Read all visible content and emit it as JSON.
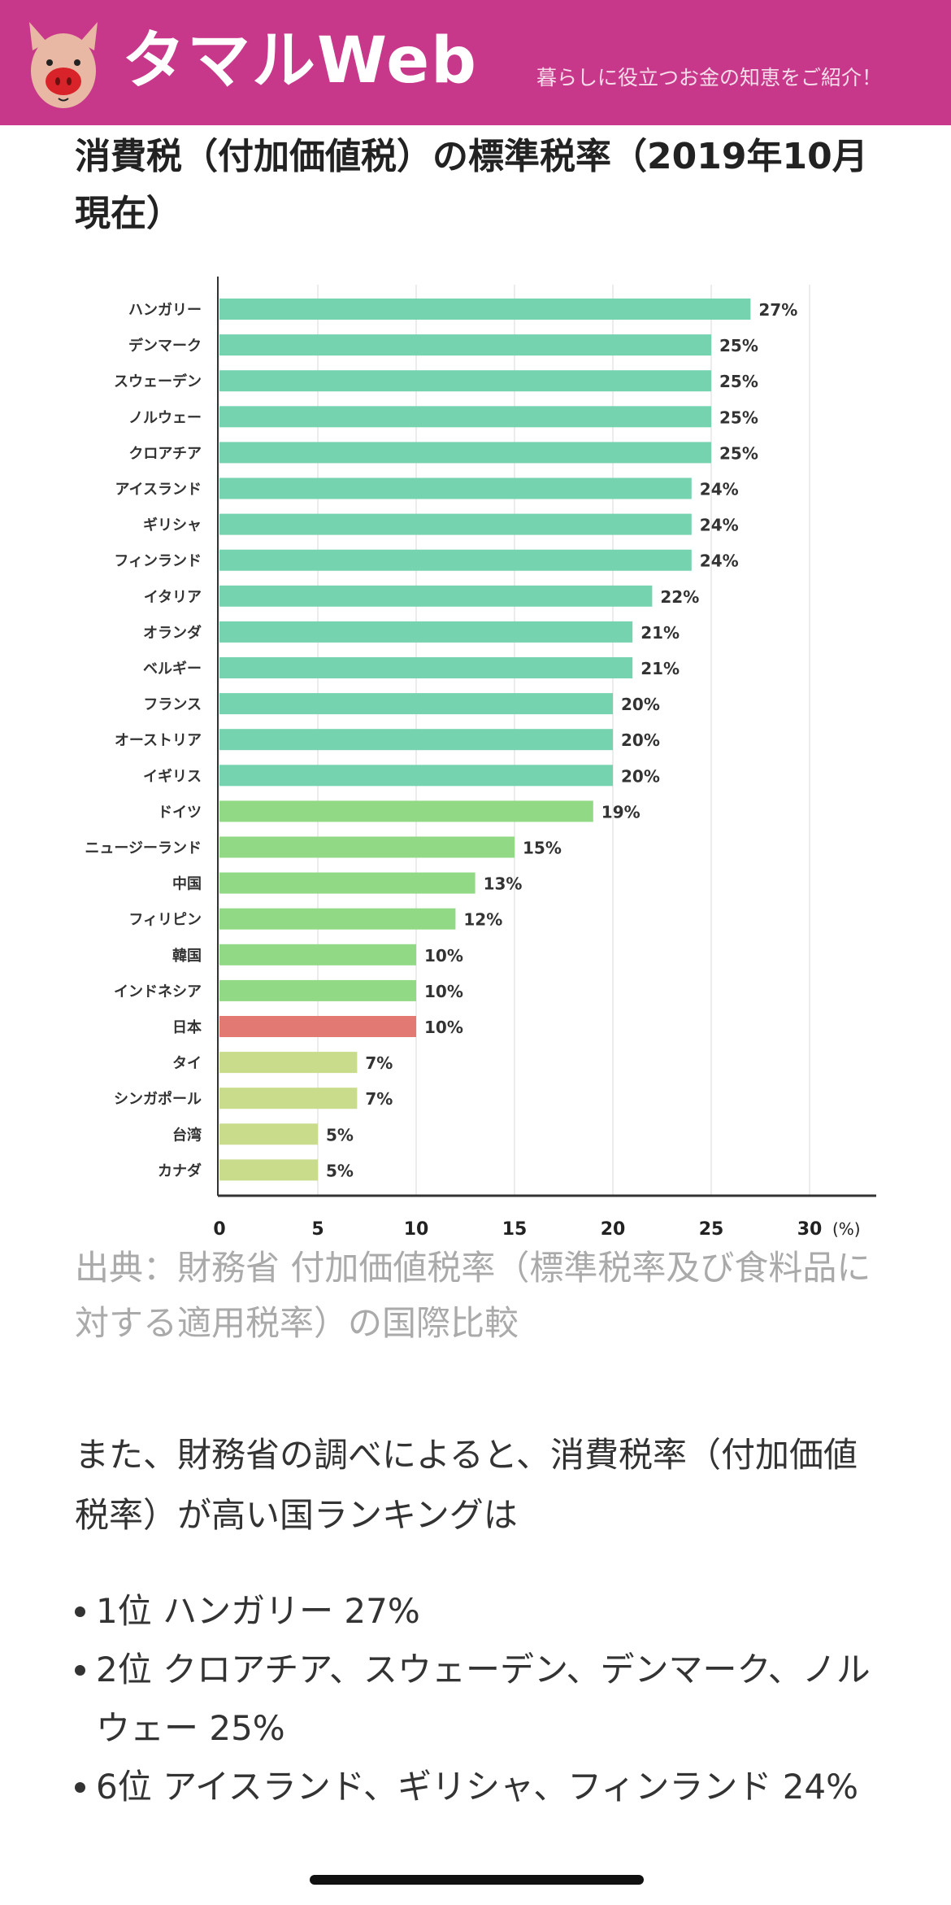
{
  "header": {
    "logo_text": "タマルWeb",
    "tagline": "暮らしに役立つお金の知恵をご紹介！",
    "brand_color": "#c8388a"
  },
  "chart_title": "消費税（付加価値税）の標準税率（2019年10月現在）",
  "chart_data": {
    "type": "bar",
    "orientation": "horizontal",
    "title": "",
    "xlabel": "",
    "unit_label": "(%)",
    "xlim": [
      0,
      30
    ],
    "xticks": [
      0,
      5,
      10,
      15,
      20,
      25,
      30
    ],
    "grid": true,
    "categories": [
      "ハンガリー",
      "デンマーク",
      "スウェーデン",
      "ノルウェー",
      "クロアチア",
      "アイスランド",
      "ギリシャ",
      "フィンランド",
      "イタリア",
      "オランダ",
      "ベルギー",
      "フランス",
      "オーストリア",
      "イギリス",
      "ドイツ",
      "ニュージーランド",
      "中国",
      "フィリピン",
      "韓国",
      "インドネシア",
      "日本",
      "タイ",
      "シンガポール",
      "台湾",
      "カナダ"
    ],
    "values": [
      27,
      25,
      25,
      25,
      25,
      24,
      24,
      24,
      22,
      21,
      21,
      20,
      20,
      20,
      19,
      15,
      13,
      12,
      10,
      10,
      10,
      7,
      7,
      5,
      5
    ],
    "data_labels": [
      "27%",
      "25%",
      "25%",
      "25%",
      "25%",
      "24%",
      "24%",
      "24%",
      "22%",
      "21%",
      "21%",
      "20%",
      "20%",
      "20%",
      "19%",
      "15%",
      "13%",
      "12%",
      "10%",
      "10%",
      "10%",
      "7%",
      "7%",
      "5%",
      "5%"
    ],
    "colors": [
      "#76d3b0",
      "#76d3b0",
      "#76d3b0",
      "#76d3b0",
      "#76d3b0",
      "#76d3b0",
      "#76d3b0",
      "#76d3b0",
      "#76d3b0",
      "#76d3b0",
      "#76d3b0",
      "#76d3b0",
      "#76d3b0",
      "#76d3b0",
      "#92d985",
      "#92d985",
      "#92d985",
      "#92d985",
      "#92d985",
      "#92d985",
      "#e27a73",
      "#c8dc8c",
      "#c8dc8c",
      "#c8dc8c",
      "#c8dc8c"
    ]
  },
  "source": "出典：財務省 付加価値税率（標準税率及び食料品に対する適用税率）の国際比較",
  "paragraph": "また、財務省の調べによると、消費税率（付加価値税率）が高い国ランキングは",
  "ranking": [
    "1位 ハンガリー 27%",
    "2位 クロアチア、スウェーデン、デンマーク、ノルウェー 25%",
    "6位 アイスランド、ギリシャ、フィンランド 24%"
  ]
}
